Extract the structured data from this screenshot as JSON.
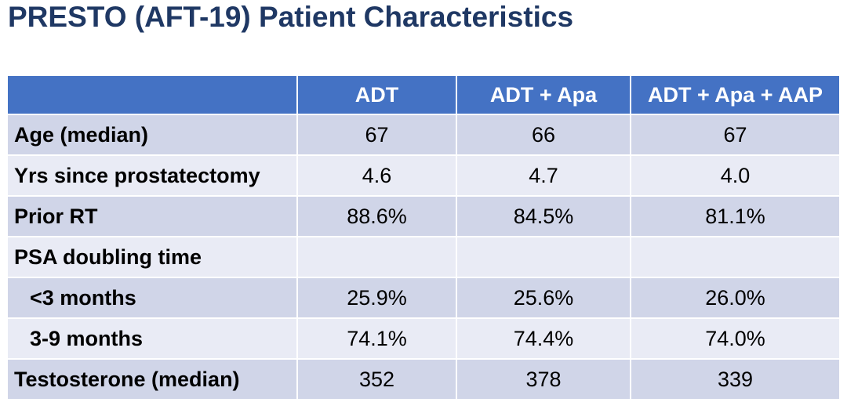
{
  "slide": {
    "title": "PRESTO (AFT-19) Patient Characteristics"
  },
  "colors": {
    "title_text": "#1F3864",
    "header_bg": "#4472C4",
    "header_text": "#FFFFFF",
    "band_dark": "#D0D5E8",
    "band_light": "#E9EBF5",
    "cell_text": "#000000"
  },
  "table": {
    "columns": [
      "",
      "ADT",
      "ADT + Apa",
      "ADT + Apa + AAP"
    ],
    "rows": [
      {
        "label": "Age (median)",
        "values": [
          "67",
          "66",
          "67"
        ]
      },
      {
        "label": "Yrs since prostatectomy",
        "values": [
          "4.6",
          "4.7",
          "4.0"
        ]
      },
      {
        "label": "Prior RT",
        "values": [
          "88.6%",
          "84.5%",
          "81.1%"
        ]
      },
      {
        "label": "PSA doubling time",
        "values": [
          "",
          "",
          ""
        ]
      },
      {
        "label": "<3 months",
        "values": [
          "25.9%",
          "25.6%",
          "26.0%"
        ]
      },
      {
        "label": "3-9 months",
        "values": [
          "74.1%",
          "74.4%",
          "74.0%"
        ]
      },
      {
        "label": "Testosterone (median)",
        "values": [
          "352",
          "378",
          "339"
        ]
      }
    ]
  }
}
